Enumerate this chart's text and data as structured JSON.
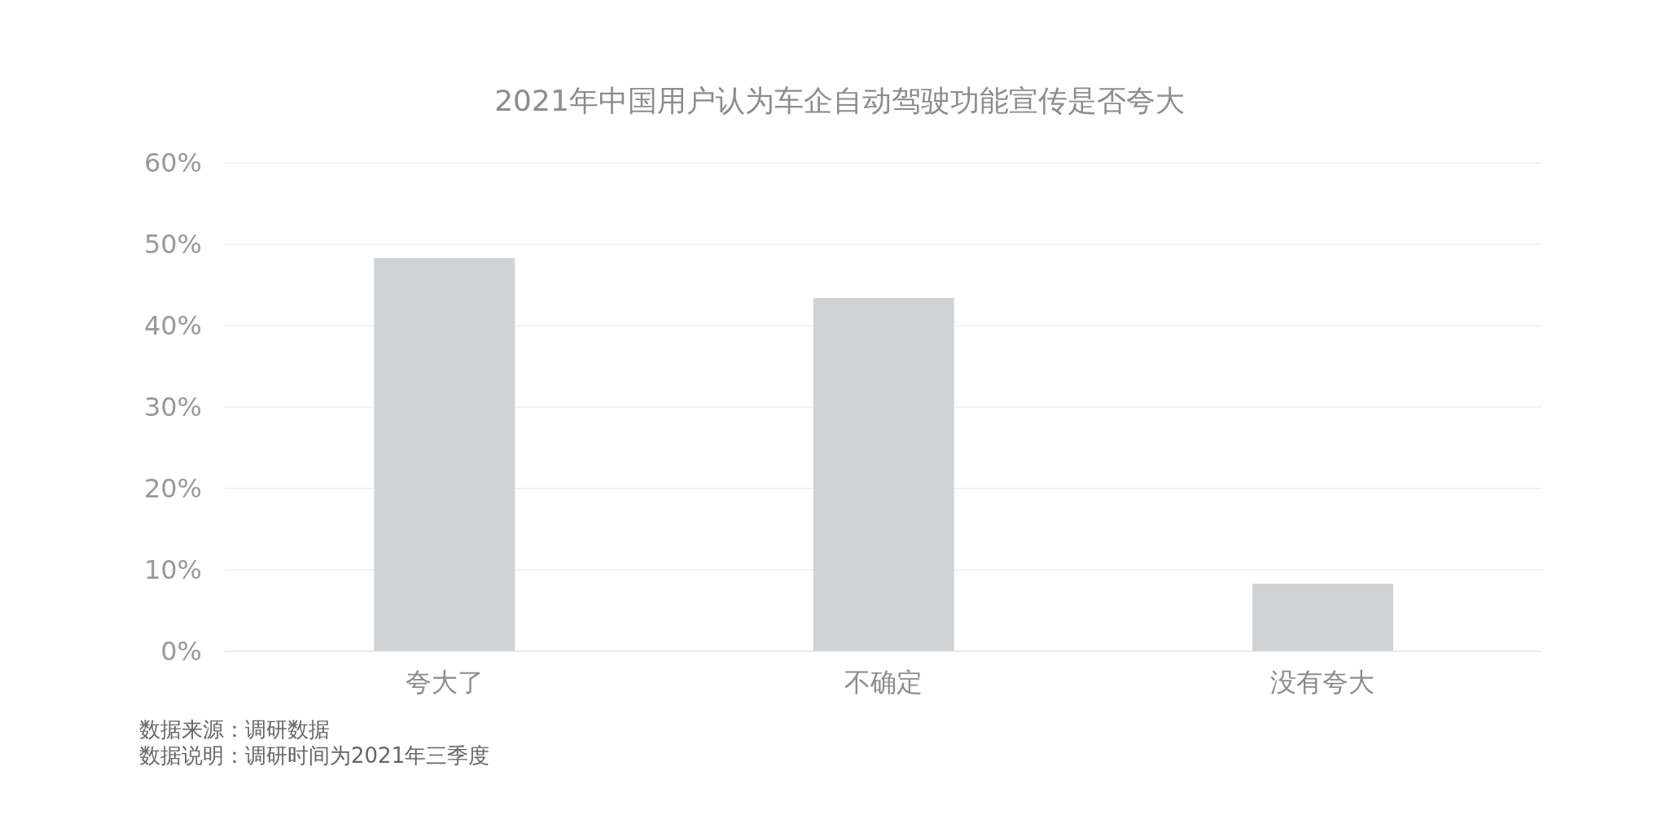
{
  "chart_data": {
    "type": "bar",
    "title": "2021年中国用户认为车企自动驾驶功能宣传是否夸大",
    "categories": [
      "夸大了",
      "不确定",
      "没有夸大"
    ],
    "values": [
      48.3,
      43.4,
      8.3
    ],
    "color": "#d0d3d6",
    "ylim": [
      0,
      60
    ],
    "yticks": [
      {
        "value": 0,
        "label": "0%"
      },
      {
        "value": 10,
        "label": "10%"
      },
      {
        "value": 20,
        "label": "20%"
      },
      {
        "value": 30,
        "label": "30%"
      },
      {
        "value": 40,
        "label": "40%"
      },
      {
        "value": 50,
        "label": "50%"
      },
      {
        "value": 60,
        "label": "60%"
      }
    ],
    "grid": "y",
    "legend": false,
    "annotations": [
      "数据来源：调研数据",
      "数据说明：调研时间为2021年三季度"
    ]
  }
}
